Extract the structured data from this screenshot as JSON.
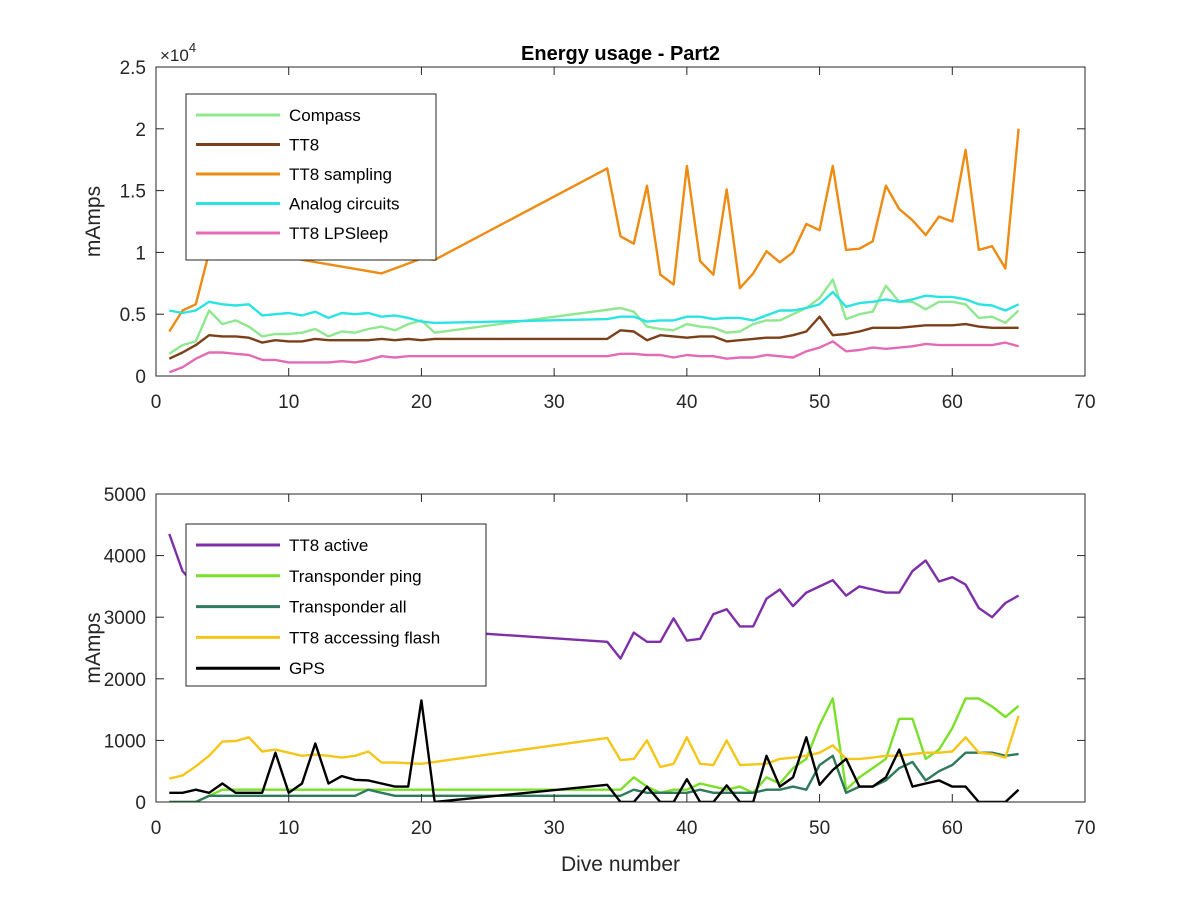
{
  "figure": {
    "title": "Energy usage - Part2"
  },
  "chart_data": [
    {
      "type": "line",
      "title": "Energy usage - Part2",
      "xlabel": "",
      "ylabel": "mAmps",
      "xlim": [
        0,
        70
      ],
      "ylim": [
        0,
        25000
      ],
      "xticks": [
        0,
        10,
        20,
        30,
        40,
        50,
        60,
        70
      ],
      "yticks": [
        0,
        5000,
        10000,
        15000,
        20000,
        25000
      ],
      "ytick_labels": [
        "0",
        "0.5",
        "1",
        "1.5",
        "2",
        "2.5"
      ],
      "y_exponent_label": "×10",
      "y_exponent_power": "4",
      "legend_position": "top-left",
      "grid": false,
      "series": [
        {
          "name": "Compass",
          "color": "#8fe88f",
          "x": [
            1,
            2,
            3,
            4,
            5,
            6,
            7,
            8,
            9,
            10,
            11,
            12,
            13,
            14,
            15,
            16,
            17,
            18,
            19,
            20,
            21,
            35,
            36,
            37,
            38,
            39,
            40,
            41,
            42,
            43,
            44,
            45,
            46,
            47,
            48,
            49,
            50,
            51,
            52,
            53,
            54,
            55,
            56,
            57,
            58,
            59,
            60,
            61,
            62,
            63,
            64,
            65
          ],
          "y": [
            1800,
            2500,
            2800,
            5300,
            4200,
            4500,
            4000,
            3200,
            3400,
            3400,
            3500,
            3800,
            3200,
            3600,
            3500,
            3800,
            4000,
            3700,
            4200,
            4500,
            3500,
            5500,
            5200,
            4000,
            3800,
            3700,
            4200,
            4000,
            3900,
            3500,
            3600,
            4200,
            4500,
            4500,
            5000,
            5500,
            6300,
            7800,
            4600,
            5000,
            5200,
            7300,
            6000,
            6000,
            5400,
            6000,
            6000,
            5800,
            4700,
            4800,
            4300,
            5300
          ]
        },
        {
          "name": "TT8",
          "color": "#7b3f19",
          "x": [
            1,
            2,
            3,
            4,
            5,
            6,
            7,
            8,
            9,
            10,
            11,
            12,
            13,
            14,
            15,
            16,
            17,
            18,
            19,
            20,
            21,
            34,
            35,
            36,
            37,
            38,
            39,
            40,
            41,
            42,
            43,
            44,
            45,
            46,
            47,
            48,
            49,
            50,
            51,
            52,
            53,
            54,
            55,
            56,
            57,
            58,
            59,
            60,
            61,
            62,
            63,
            64,
            65
          ],
          "y": [
            1400,
            1900,
            2500,
            3300,
            3200,
            3200,
            3100,
            2700,
            2900,
            2800,
            2800,
            3000,
            2900,
            2900,
            2900,
            2900,
            3000,
            2900,
            3000,
            2900,
            3000,
            3000,
            3700,
            3600,
            2900,
            3300,
            3200,
            3100,
            3200,
            3200,
            2800,
            2900,
            3000,
            3100,
            3100,
            3300,
            3600,
            4800,
            3300,
            3400,
            3600,
            3900,
            3900,
            3900,
            4000,
            4100,
            4100,
            4100,
            4200,
            4000,
            3900,
            3900,
            3900
          ]
        },
        {
          "name": "TT8 sampling",
          "color": "#ed8b12",
          "x": [
            1,
            2,
            3,
            4,
            5,
            17,
            20,
            21,
            34,
            35,
            36,
            37,
            38,
            39,
            40,
            41,
            42,
            43,
            44,
            45,
            46,
            47,
            48,
            49,
            50,
            51,
            52,
            53,
            54,
            55,
            56,
            57,
            58,
            59,
            60,
            61,
            62,
            63,
            64,
            65
          ],
          "y": [
            3600,
            5300,
            5800,
            10000,
            10500,
            8300,
            9500,
            9400,
            16800,
            11300,
            10700,
            15400,
            8200,
            7400,
            17000,
            9300,
            8200,
            15100,
            7100,
            8300,
            10100,
            9200,
            10000,
            12300,
            11800,
            17000,
            10200,
            10300,
            10900,
            15400,
            13500,
            12600,
            11400,
            12900,
            12500,
            18300,
            10200,
            10500,
            8700,
            20000
          ]
        },
        {
          "name": "Analog circuits",
          "color": "#2be3e3",
          "x": [
            1,
            2,
            3,
            4,
            5,
            6,
            7,
            8,
            9,
            10,
            11,
            12,
            13,
            14,
            15,
            16,
            17,
            18,
            19,
            20,
            21,
            34,
            35,
            36,
            37,
            38,
            39,
            40,
            41,
            42,
            43,
            44,
            45,
            46,
            47,
            48,
            49,
            50,
            51,
            52,
            53,
            54,
            55,
            56,
            57,
            58,
            59,
            60,
            61,
            62,
            63,
            64,
            65
          ],
          "y": [
            5300,
            5100,
            5300,
            6000,
            5800,
            5700,
            5800,
            4900,
            5000,
            5100,
            4900,
            5200,
            4700,
            5100,
            5000,
            5100,
            4800,
            4900,
            4700,
            4400,
            4300,
            4600,
            4800,
            4800,
            4400,
            4500,
            4500,
            4800,
            4800,
            4600,
            4700,
            4700,
            4500,
            4900,
            5300,
            5300,
            5500,
            5800,
            6800,
            5600,
            5900,
            6000,
            6200,
            6000,
            6200,
            6500,
            6400,
            6400,
            6200,
            5800,
            5700,
            5300,
            5800
          ]
        },
        {
          "name": "TT8 LPSleep",
          "color": "#e36bb5",
          "x": [
            1,
            2,
            3,
            4,
            5,
            6,
            7,
            8,
            9,
            10,
            11,
            12,
            13,
            14,
            15,
            16,
            17,
            18,
            19,
            20,
            21,
            34,
            35,
            36,
            37,
            38,
            39,
            40,
            41,
            42,
            43,
            44,
            45,
            46,
            47,
            48,
            49,
            50,
            51,
            52,
            53,
            54,
            55,
            56,
            57,
            58,
            59,
            60,
            61,
            62,
            63,
            64,
            65
          ],
          "y": [
            300,
            700,
            1400,
            1900,
            1900,
            1800,
            1700,
            1300,
            1300,
            1100,
            1100,
            1100,
            1100,
            1200,
            1100,
            1300,
            1600,
            1500,
            1600,
            1600,
            1600,
            1600,
            1800,
            1800,
            1700,
            1700,
            1500,
            1700,
            1600,
            1600,
            1400,
            1500,
            1500,
            1700,
            1600,
            1500,
            2000,
            2300,
            2800,
            2000,
            2100,
            2300,
            2200,
            2300,
            2400,
            2600,
            2500,
            2500,
            2500,
            2500,
            2500,
            2700,
            2400
          ]
        }
      ]
    },
    {
      "type": "line",
      "title": "",
      "xlabel": "Dive number",
      "ylabel": "mAmps",
      "xlim": [
        0,
        70
      ],
      "ylim": [
        0,
        5000
      ],
      "xticks": [
        0,
        10,
        20,
        30,
        40,
        50,
        60,
        70
      ],
      "yticks": [
        0,
        1000,
        2000,
        3000,
        4000,
        5000
      ],
      "ytick_labels": [
        "0",
        "1000",
        "2000",
        "3000",
        "4000",
        "5000"
      ],
      "legend_position": "top-left",
      "grid": false,
      "series": [
        {
          "name": "TT8 active",
          "color": "#7e2fa8",
          "x": [
            1,
            2,
            3,
            20,
            34,
            35,
            36,
            37,
            38,
            39,
            40,
            41,
            42,
            43,
            44,
            45,
            46,
            47,
            48,
            49,
            50,
            51,
            52,
            53,
            54,
            55,
            56,
            57,
            58,
            59,
            60,
            61,
            62,
            63,
            64,
            65
          ],
          "y": [
            4350,
            3750,
            3500,
            2800,
            2600,
            2330,
            2750,
            2600,
            2600,
            2980,
            2620,
            2650,
            3050,
            3130,
            2850,
            2850,
            3300,
            3450,
            3180,
            3400,
            3500,
            3600,
            3350,
            3500,
            3450,
            3400,
            3400,
            3750,
            3920,
            3580,
            3650,
            3530,
            3150,
            3000,
            3230,
            3350
          ]
        },
        {
          "name": "Transponder ping",
          "color": "#7be02a",
          "x": [
            1,
            2,
            3,
            4,
            5,
            6,
            7,
            8,
            9,
            10,
            11,
            12,
            13,
            14,
            15,
            16,
            17,
            18,
            19,
            20,
            21,
            34,
            35,
            36,
            37,
            38,
            39,
            40,
            41,
            42,
            43,
            44,
            45,
            46,
            47,
            48,
            49,
            50,
            51,
            52,
            53,
            54,
            55,
            56,
            57,
            58,
            59,
            60,
            61,
            62,
            63,
            64,
            65
          ],
          "y": [
            0,
            0,
            0,
            100,
            200,
            200,
            200,
            200,
            200,
            200,
            200,
            200,
            200,
            200,
            200,
            200,
            200,
            200,
            200,
            200,
            200,
            200,
            200,
            400,
            250,
            150,
            200,
            200,
            300,
            250,
            200,
            250,
            150,
            400,
            300,
            550,
            700,
            1250,
            1680,
            200,
            400,
            550,
            700,
            1350,
            1350,
            700,
            850,
            1200,
            1680,
            1680,
            1550,
            1380,
            1560
          ]
        },
        {
          "name": "Transponder all",
          "color": "#2e7a5a",
          "x": [
            1,
            2,
            3,
            4,
            5,
            6,
            7,
            8,
            9,
            10,
            11,
            12,
            13,
            14,
            15,
            16,
            17,
            18,
            19,
            20,
            21,
            34,
            35,
            36,
            37,
            38,
            39,
            40,
            41,
            42,
            43,
            44,
            45,
            46,
            47,
            48,
            49,
            50,
            51,
            52,
            53,
            54,
            55,
            56,
            57,
            58,
            59,
            60,
            61,
            62,
            63,
            64,
            65
          ],
          "y": [
            0,
            0,
            0,
            100,
            100,
            100,
            100,
            100,
            100,
            100,
            100,
            100,
            100,
            100,
            100,
            200,
            150,
            100,
            100,
            100,
            100,
            100,
            100,
            200,
            150,
            150,
            150,
            150,
            200,
            150,
            150,
            150,
            150,
            200,
            200,
            250,
            200,
            600,
            750,
            150,
            250,
            250,
            350,
            550,
            650,
            350,
            500,
            600,
            800,
            800,
            800,
            750,
            780
          ]
        },
        {
          "name": "TT8 accessing flash",
          "color": "#f5c619",
          "x": [
            1,
            2,
            3,
            4,
            5,
            6,
            7,
            8,
            9,
            10,
            11,
            12,
            13,
            14,
            15,
            16,
            17,
            18,
            19,
            20,
            34,
            35,
            36,
            37,
            38,
            39,
            40,
            41,
            42,
            43,
            44,
            45,
            46,
            47,
            48,
            49,
            50,
            51,
            52,
            53,
            54,
            55,
            56,
            57,
            58,
            59,
            60,
            61,
            62,
            63,
            64,
            65
          ],
          "y": [
            380,
            430,
            580,
            750,
            980,
            990,
            1050,
            820,
            850,
            800,
            750,
            770,
            750,
            720,
            750,
            820,
            640,
            640,
            630,
            620,
            1040,
            680,
            700,
            1000,
            570,
            620,
            1050,
            620,
            600,
            1000,
            600,
            610,
            620,
            700,
            720,
            750,
            800,
            920,
            700,
            700,
            720,
            750,
            750,
            780,
            800,
            800,
            820,
            1050,
            800,
            780,
            720,
            1400
          ]
        },
        {
          "name": "GPS",
          "color": "#000000",
          "x": [
            1,
            2,
            3,
            4,
            5,
            6,
            7,
            8,
            9,
            10,
            11,
            12,
            13,
            14,
            15,
            16,
            17,
            18,
            19,
            20,
            21,
            34,
            35,
            36,
            37,
            38,
            39,
            40,
            41,
            42,
            43,
            44,
            45,
            46,
            47,
            48,
            49,
            50,
            51,
            52,
            53,
            54,
            55,
            56,
            57,
            58,
            59,
            60,
            61,
            62,
            63,
            64,
            65
          ],
          "y": [
            150,
            150,
            200,
            150,
            300,
            150,
            150,
            150,
            800,
            150,
            300,
            950,
            300,
            420,
            360,
            350,
            300,
            250,
            250,
            1650,
            0,
            280,
            0,
            0,
            250,
            0,
            0,
            370,
            0,
            0,
            270,
            0,
            0,
            750,
            250,
            400,
            1050,
            280,
            520,
            700,
            250,
            250,
            400,
            850,
            250,
            300,
            350,
            250,
            250,
            0,
            0,
            0,
            200
          ]
        }
      ]
    }
  ]
}
